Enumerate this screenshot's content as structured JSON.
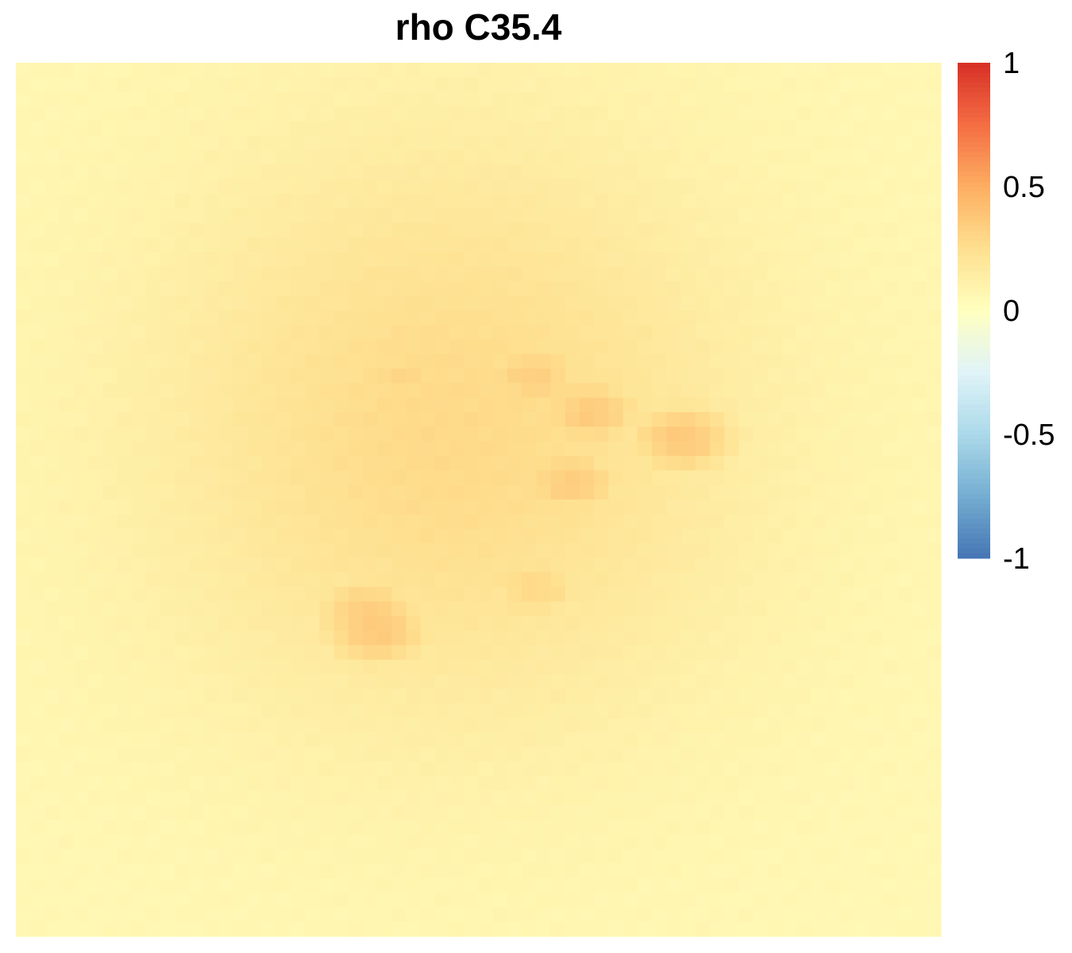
{
  "chart_data": {
    "type": "heatmap",
    "title": "rho C35.4",
    "xlabel": "",
    "ylabel": "",
    "grid_size": [
      64,
      60
    ],
    "value_range": [
      -1,
      1
    ],
    "field": {
      "baseline": 0.06,
      "center_peak": 0.22,
      "center_row": 0.42,
      "center_col": 0.47,
      "hotspots": [
        {
          "row": 0.36,
          "col": 0.56,
          "value": 0.32
        },
        {
          "row": 0.4,
          "col": 0.62,
          "value": 0.34
        },
        {
          "row": 0.43,
          "col": 0.72,
          "value": 0.35
        },
        {
          "row": 0.48,
          "col": 0.6,
          "value": 0.33
        },
        {
          "row": 0.63,
          "col": 0.38,
          "value": 0.33
        },
        {
          "row": 0.65,
          "col": 0.39,
          "value": 0.35
        },
        {
          "row": 0.36,
          "col": 0.42,
          "value": 0.28
        },
        {
          "row": 0.6,
          "col": 0.56,
          "value": 0.27
        }
      ]
    },
    "legend": {
      "position": "right",
      "ticks": [
        {
          "value": 1,
          "label": "1"
        },
        {
          "value": 0.5,
          "label": "0.5"
        },
        {
          "value": 0,
          "label": "0"
        },
        {
          "value": -0.5,
          "label": "-0.5"
        },
        {
          "value": -1,
          "label": "-1"
        }
      ],
      "colors": [
        {
          "value": -1,
          "color": "#4575b4"
        },
        {
          "value": -0.75,
          "color": "#74add1"
        },
        {
          "value": -0.5,
          "color": "#abd9e9"
        },
        {
          "value": -0.25,
          "color": "#e0f3f8"
        },
        {
          "value": 0,
          "color": "#ffffbf"
        },
        {
          "value": 0.25,
          "color": "#fee090"
        },
        {
          "value": 0.5,
          "color": "#fdae61"
        },
        {
          "value": 0.75,
          "color": "#f46d43"
        },
        {
          "value": 1,
          "color": "#d73027"
        }
      ]
    }
  }
}
